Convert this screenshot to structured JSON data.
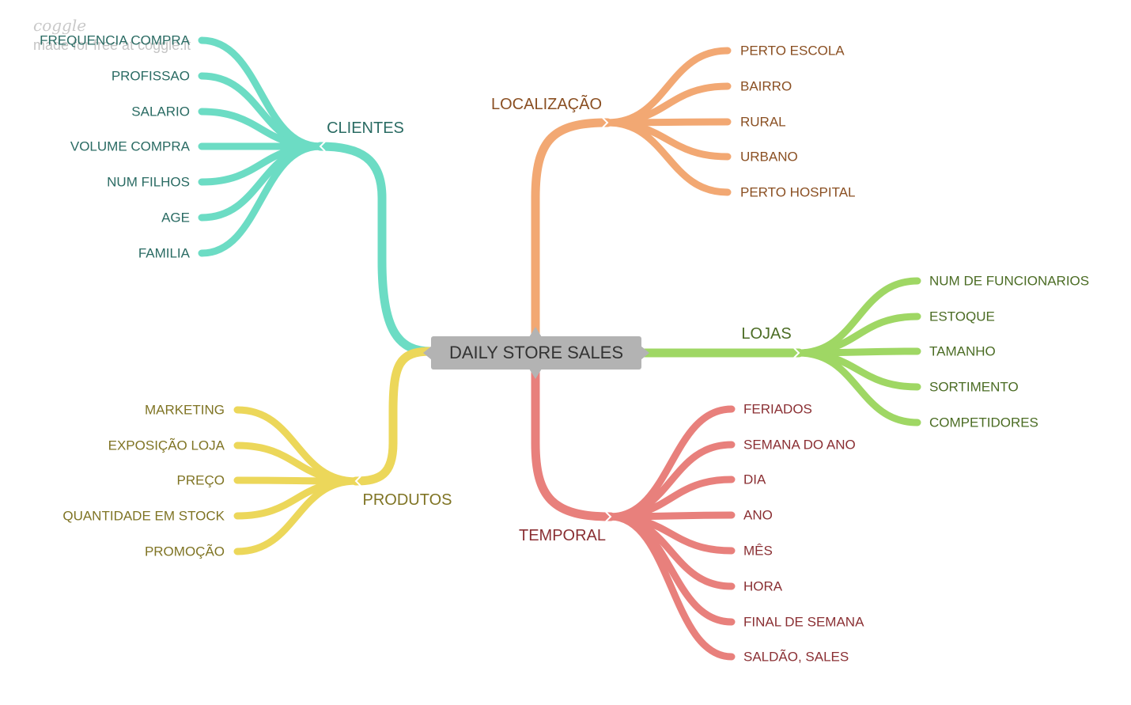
{
  "watermark": {
    "logo": "coggle",
    "text": "made for free at coggle.it"
  },
  "root": {
    "label": "DAILY STORE SALES",
    "color": "#b3b3b3"
  },
  "branches": {
    "clientes": {
      "label": "CLIENTES",
      "line_color": "#6cdcc4",
      "text_color": "#2a6b63",
      "items": [
        "FREQUENCIA COMPRA",
        "PROFISSAO",
        "SALARIO",
        "VOLUME COMPRA",
        "NUM FILHOS",
        "AGE",
        "FAMILIA"
      ]
    },
    "produtos": {
      "label": "PRODUTOS",
      "line_color": "#ecd75a",
      "text_color": "#7f7424",
      "items": [
        "MARKETING",
        "EXPOSIÇÃO LOJA",
        "PREÇO",
        "QUANTIDADE EM STOCK",
        "PROMOÇÃO"
      ]
    },
    "localizacao": {
      "label": "LOCALIZAÇÃO",
      "line_color": "#f2a873",
      "text_color": "#8a4f22",
      "items": [
        "PERTO ESCOLA",
        "BAIRRO",
        "RURAL",
        "URBANO",
        "PERTO HOSPITAL"
      ]
    },
    "lojas": {
      "label": "LOJAS",
      "line_color": "#9fd764",
      "text_color": "#4b6c24",
      "items": [
        "NUM DE FUNCIONARIOS",
        "ESTOQUE",
        "TAMANHO",
        "SORTIMENTO",
        "COMPETIDORES"
      ]
    },
    "temporal": {
      "label": "TEMPORAL",
      "line_color": "#e8807c",
      "text_color": "#8a2f33",
      "items": [
        "FERIADOS",
        "SEMANA DO ANO",
        "DIA",
        "ANO",
        "MÊS",
        "HORA",
        "FINAL DE SEMANA",
        "SALDÃO, SALES"
      ]
    }
  }
}
